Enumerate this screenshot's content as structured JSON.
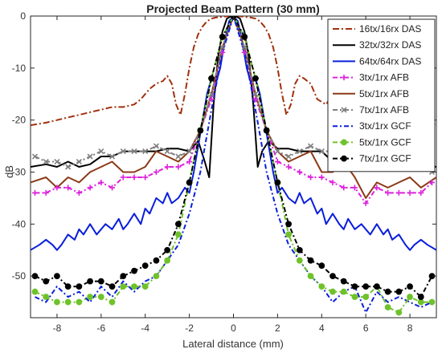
{
  "chart_data": {
    "type": "line",
    "title": "Projected Beam Pattern (30 mm)",
    "xlabel": "Lateral distance (mm)",
    "ylabel": "dB",
    "xlim": [
      -9.2,
      9.2
    ],
    "ylim": [
      -58,
      0
    ],
    "xticks": [
      -8,
      -6,
      -4,
      -2,
      0,
      2,
      4,
      6,
      8
    ],
    "yticks": [
      0,
      -10,
      -20,
      -30,
      -40,
      -50
    ],
    "grid": false,
    "legend_position": "top-right",
    "series": [
      {
        "name": "16tx/16rx DAS",
        "color": "#a0300e",
        "dash": "8,3,2,3",
        "marker": "none",
        "x": [
          -9.2,
          -8.5,
          -8,
          -7.5,
          -7,
          -6.5,
          -6,
          -5.5,
          -5,
          -4.5,
          -4.2,
          -3.8,
          -3.5,
          -3.2,
          -3,
          -2.8,
          -2.6,
          -2.4,
          -2.2,
          -2,
          -1.8,
          -1.6,
          -1.4,
          -1.2,
          -1,
          -0.8,
          -0.6,
          -0.4,
          -0.2,
          0,
          0.2,
          0.4,
          0.6,
          0.8,
          1,
          1.2,
          1.4,
          1.6,
          1.8,
          2,
          2.2,
          2.4,
          2.6,
          2.8,
          3,
          3.2,
          3.5,
          3.8,
          4.2,
          4.5,
          5,
          5.5,
          6,
          6.5,
          7,
          7.5,
          8,
          8.5,
          9.2
        ],
        "y": [
          -21,
          -20.5,
          -20,
          -19.5,
          -19,
          -18.5,
          -18,
          -17.5,
          -17.5,
          -17,
          -16,
          -14,
          -13,
          -12.5,
          -11.5,
          -13,
          -17,
          -19,
          -15,
          -10,
          -6,
          -3.5,
          -2,
          -1,
          -0.5,
          -0.3,
          -0.2,
          -0.1,
          0,
          0,
          0,
          -0.1,
          -0.2,
          -0.3,
          -0.5,
          -1,
          -2,
          -3.5,
          -6,
          -10,
          -15,
          -19,
          -17,
          -13,
          -11.5,
          -12,
          -13,
          -16,
          -17,
          -15,
          -17,
          -18,
          -20,
          -18,
          -17,
          -19,
          -20,
          -20,
          -21
        ]
      },
      {
        "name": "32tx/32rx DAS",
        "color": "#000000",
        "dash": "",
        "marker": "none",
        "x": [
          -9.2,
          -8.5,
          -8,
          -7.5,
          -7,
          -6.5,
          -6,
          -5.5,
          -5,
          -4.5,
          -4,
          -3.5,
          -3,
          -2.5,
          -2,
          -1.6,
          -1.3,
          -1.1,
          -0.9,
          -0.7,
          -0.5,
          -0.3,
          -0.1,
          0,
          0.1,
          0.3,
          0.5,
          0.7,
          0.9,
          1.1,
          1.3,
          1.6,
          2,
          2.5,
          3,
          3.5,
          4,
          4.5,
          5,
          5.5,
          6,
          6.5,
          7,
          7.5,
          8,
          8.5,
          9.2
        ],
        "y": [
          -29,
          -28.5,
          -29,
          -28,
          -29,
          -28.5,
          -27,
          -27,
          -26,
          -26,
          -26,
          -26,
          -25.5,
          -25.5,
          -26,
          -24,
          -28,
          -31,
          -17,
          -8,
          -3,
          -0.5,
          0,
          0,
          0,
          -0.5,
          -3,
          -8,
          -17,
          -29,
          -26,
          -24,
          -25.5,
          -25.5,
          -26,
          -26,
          -26,
          -28,
          -27,
          -27,
          -27,
          -29,
          -27,
          -27,
          -28,
          -28.5,
          -29
        ]
      },
      {
        "name": "64tx/64rx DAS",
        "color": "#0a1fdc",
        "dash": "",
        "marker": "none",
        "x": [
          -9.2,
          -8.8,
          -8.5,
          -8.2,
          -8,
          -7.8,
          -7.5,
          -7.2,
          -7,
          -6.8,
          -6.5,
          -6.2,
          -6,
          -5.8,
          -5.5,
          -5.2,
          -5,
          -4.8,
          -4.5,
          -4.2,
          -4,
          -3.8,
          -3.5,
          -3.2,
          -3,
          -2.8,
          -2.5,
          -2.2,
          -2,
          -1.8,
          -1.6,
          -1.4,
          -1.2,
          -1,
          -0.8,
          -0.6,
          -0.4,
          -0.2,
          0,
          0.2,
          0.4,
          0.6,
          0.8,
          1,
          1.2,
          1.4,
          1.6,
          1.8,
          2,
          2.2,
          2.5,
          2.8,
          3,
          3.2,
          3.5,
          3.8,
          4,
          4.2,
          4.5,
          4.8,
          5,
          5.2,
          5.5,
          5.8,
          6,
          6.2,
          6.5,
          6.8,
          7,
          7.2,
          7.5,
          7.8,
          8,
          8.2,
          8.5,
          8.8,
          9.2
        ],
        "y": [
          -45,
          -44,
          -43,
          -44,
          -45,
          -44,
          -42,
          -43,
          -41,
          -42,
          -40,
          -42,
          -41,
          -40,
          -41,
          -39,
          -41,
          -40,
          -38,
          -40,
          -37,
          -38,
          -35,
          -36,
          -34,
          -36,
          -35,
          -33,
          -34,
          -30,
          -25,
          -20,
          -15,
          -12,
          -13,
          -10,
          -5,
          -1,
          0,
          -1,
          -5,
          -10,
          -13,
          -12,
          -15,
          -20,
          -25,
          -30,
          -34,
          -33,
          -35,
          -36,
          -34,
          -36,
          -35,
          -38,
          -37,
          -40,
          -38,
          -40,
          -41,
          -39,
          -41,
          -40,
          -41,
          -42,
          -40,
          -42,
          -41,
          -43,
          -42,
          -44,
          -45,
          -44,
          -43,
          -44,
          -45
        ]
      },
      {
        "name": "3tx/1rx AFB",
        "color": "#dd22dd",
        "dash": "6,3,2,3",
        "marker": "plus",
        "x": [
          -9,
          -8.5,
          -8,
          -7.5,
          -7,
          -6.5,
          -6,
          -5.5,
          -5,
          -4.5,
          -4,
          -3.5,
          -3,
          -2.5,
          -2,
          -1.5,
          -1,
          -0.5,
          0,
          0.5,
          1,
          1.5,
          2,
          2.5,
          3,
          3.5,
          4,
          4.5,
          5,
          5.5,
          6,
          6.5,
          7,
          7.5,
          8,
          8.5,
          9
        ],
        "y": [
          -34,
          -34,
          -33,
          -33,
          -34,
          -33,
          -32,
          -33,
          -31,
          -31,
          -31,
          -30,
          -29,
          -29,
          -28,
          -22,
          -16,
          -7,
          0,
          -7,
          -16,
          -22,
          -28,
          -29,
          -30,
          -31,
          -31,
          -32,
          -33,
          -33,
          -36,
          -33,
          -34,
          -34,
          -34,
          -34,
          -32
        ]
      },
      {
        "name": "5tx/1rx AFB",
        "color": "#8b3a18",
        "dash": "",
        "marker": "none",
        "x": [
          -9.2,
          -8.5,
          -8,
          -7.5,
          -7,
          -6.5,
          -6,
          -5.5,
          -5,
          -4.5,
          -4,
          -3.5,
          -3,
          -2.5,
          -2,
          -1.5,
          -1,
          -0.5,
          0,
          0.5,
          1,
          1.5,
          2,
          2.5,
          3,
          3.5,
          4,
          4.5,
          5,
          5.5,
          6,
          6.5,
          7,
          7.5,
          8,
          8.5,
          9.2
        ],
        "y": [
          -32,
          -31,
          -33,
          -31,
          -32,
          -30,
          -29,
          -28,
          -30,
          -30,
          -29,
          -26,
          -27,
          -28,
          -26,
          -22,
          -15,
          -6,
          0,
          -6,
          -15,
          -22,
          -26,
          -28,
          -27,
          -26,
          -30,
          -30,
          -28,
          -31,
          -35,
          -32,
          -33,
          -32,
          -31,
          -33,
          -31
        ]
      },
      {
        "name": "7tx/1rx AFB",
        "color": "#7f7f7f",
        "dash": "6,3,2,3",
        "marker": "x",
        "x": [
          -9,
          -8.5,
          -8,
          -7.5,
          -7,
          -6.5,
          -6,
          -5.5,
          -5,
          -4.5,
          -4,
          -3.5,
          -3,
          -2.5,
          -2,
          -1.5,
          -1,
          -0.5,
          0,
          0.5,
          1,
          1.5,
          2,
          2.5,
          3,
          3.5,
          4,
          4.5,
          5,
          5.5,
          6,
          6.5,
          7,
          7.5,
          8,
          8.5,
          9
        ],
        "y": [
          -27,
          -28,
          -28,
          -29,
          -28,
          -27,
          -26,
          -27,
          -26,
          -26,
          -26,
          -25,
          -26,
          -27,
          -26,
          -22,
          -15,
          -6,
          0,
          -6,
          -15,
          -22,
          -26,
          -27,
          -26,
          -25,
          -26,
          -26,
          -27,
          -28,
          -27,
          -28,
          -28,
          -29,
          -28,
          -29,
          -30
        ]
      },
      {
        "name": "3tx/1rx GCF",
        "color": "#0a1fdc",
        "dash": "6,3,2,3",
        "marker": "none",
        "x": [
          -9,
          -8.5,
          -8,
          -7.5,
          -7,
          -6.5,
          -6,
          -5.5,
          -5,
          -4.5,
          -4,
          -3.5,
          -3,
          -2.5,
          -2,
          -1.5,
          -1,
          -0.5,
          0,
          0.5,
          1,
          1.5,
          2,
          2.5,
          3,
          3.5,
          4,
          4.5,
          5,
          5.5,
          6,
          6.5,
          7,
          7.5,
          8,
          8.5,
          9
        ],
        "y": [
          -54,
          -55,
          -52,
          -54,
          -53,
          -55,
          -52,
          -54,
          -51,
          -53,
          -51,
          -50,
          -47,
          -44,
          -38,
          -30,
          -18,
          -7,
          0,
          -7,
          -18,
          -30,
          -38,
          -44,
          -47,
          -50,
          -52,
          -55,
          -53,
          -52,
          -57,
          -53,
          -55,
          -54,
          -55,
          -56,
          -55
        ]
      },
      {
        "name": "5tx/1rx GCF",
        "color": "#6fc22a",
        "dash": "6,3,2,3",
        "marker": "circle",
        "x": [
          -9,
          -8.5,
          -8,
          -7.5,
          -7,
          -6.5,
          -6,
          -5.5,
          -5,
          -4.5,
          -4,
          -3.5,
          -3,
          -2.5,
          -2,
          -1.5,
          -1,
          -0.5,
          0,
          0.5,
          1,
          1.5,
          2,
          2.5,
          3,
          3.5,
          4,
          4.5,
          5,
          5.5,
          6,
          6.5,
          7,
          7.5,
          8,
          8.5,
          9
        ],
        "y": [
          -53,
          -54,
          -55,
          -55,
          -55,
          -54,
          -54,
          -55,
          -52,
          -52,
          -52,
          -50,
          -47,
          -42,
          -32,
          -22,
          -12,
          -4,
          0,
          -4,
          -12,
          -22,
          -32,
          -42,
          -47,
          -50,
          -52,
          -53,
          -53,
          -54,
          -54,
          -52,
          -56,
          -57,
          -54,
          -55,
          -55
        ]
      },
      {
        "name": "7tx/1rx GCF",
        "color": "#000000",
        "dash": "6,3,2,3",
        "marker": "dot",
        "x": [
          -9,
          -8.5,
          -8,
          -7.5,
          -7,
          -6.5,
          -6,
          -5.5,
          -5,
          -4.5,
          -4,
          -3.5,
          -3,
          -2.5,
          -2,
          -1.5,
          -1,
          -0.5,
          0,
          0.5,
          1,
          1.5,
          2,
          2.5,
          3,
          3.5,
          4,
          4.5,
          5,
          5.5,
          6,
          6.5,
          7,
          7.5,
          8,
          8.5,
          9
        ],
        "y": [
          -50,
          -51,
          -50,
          -52,
          -52,
          -51,
          -51,
          -52,
          -50,
          -49,
          -48,
          -47,
          -45,
          -40,
          -32,
          -22,
          -12,
          -4,
          0,
          -4,
          -12,
          -22,
          -32,
          -40,
          -45,
          -47,
          -48,
          -50,
          -51,
          -52,
          -52,
          -52,
          -53,
          -53,
          -52,
          -54,
          -50
        ]
      }
    ]
  }
}
